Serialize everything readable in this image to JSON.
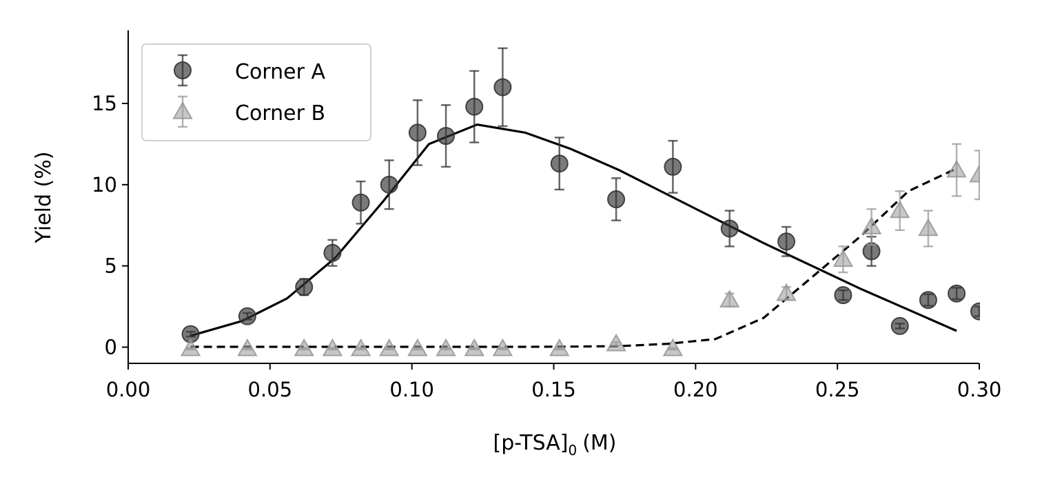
{
  "chart_data": {
    "type": "scatter",
    "title": "",
    "xlabel": "[p-TSA]",
    "xlabel_subscript": "0",
    "xlabel_unit": "(M)",
    "ylabel": "Yield (%)",
    "xlim": [
      0.0,
      0.3
    ],
    "ylim": [
      -1.0,
      19.5
    ],
    "xticks": [
      0.0,
      0.05,
      0.1,
      0.15,
      0.2,
      0.25,
      0.3
    ],
    "xtick_labels": [
      "0.00",
      "0.05",
      "0.10",
      "0.15",
      "0.20",
      "0.25",
      "0.30"
    ],
    "yticks": [
      0,
      5,
      10,
      15
    ],
    "ytick_labels": [
      "0",
      "5",
      "10",
      "15"
    ],
    "grid": false,
    "legend": {
      "position": "top-left"
    },
    "series": [
      {
        "name": "Corner A",
        "marker": "circle",
        "color": "#333333",
        "error_bars": true,
        "points": [
          {
            "x": 0.022,
            "y": 0.8,
            "err": 0.15
          },
          {
            "x": 0.042,
            "y": 1.9,
            "err": 0.2
          },
          {
            "x": 0.062,
            "y": 3.7,
            "err": 0.5
          },
          {
            "x": 0.072,
            "y": 5.8,
            "err": 0.8
          },
          {
            "x": 0.082,
            "y": 8.9,
            "err": 1.3
          },
          {
            "x": 0.092,
            "y": 10.0,
            "err": 1.5
          },
          {
            "x": 0.102,
            "y": 13.2,
            "err": 2.0
          },
          {
            "x": 0.112,
            "y": 13.0,
            "err": 1.9
          },
          {
            "x": 0.122,
            "y": 14.8,
            "err": 2.2
          },
          {
            "x": 0.132,
            "y": 16.0,
            "err": 2.4
          },
          {
            "x": 0.152,
            "y": 11.3,
            "err": 1.6
          },
          {
            "x": 0.172,
            "y": 9.1,
            "err": 1.3
          },
          {
            "x": 0.192,
            "y": 11.1,
            "err": 1.6
          },
          {
            "x": 0.212,
            "y": 7.3,
            "err": 1.1
          },
          {
            "x": 0.232,
            "y": 6.5,
            "err": 0.9
          },
          {
            "x": 0.252,
            "y": 3.2,
            "err": 0.3
          },
          {
            "x": 0.262,
            "y": 5.9,
            "err": 0.9
          },
          {
            "x": 0.272,
            "y": 1.3,
            "err": 0.15
          },
          {
            "x": 0.282,
            "y": 2.9,
            "err": 0.35
          },
          {
            "x": 0.292,
            "y": 3.3,
            "err": 0.35
          },
          {
            "x": 0.3,
            "y": 2.2,
            "err": 0.3
          }
        ]
      },
      {
        "name": "Corner B",
        "marker": "triangle",
        "color": "#999999",
        "error_bars": true,
        "points": [
          {
            "x": 0.022,
            "y": -0.1,
            "err": 0.05
          },
          {
            "x": 0.042,
            "y": -0.1,
            "err": 0.05
          },
          {
            "x": 0.062,
            "y": -0.1,
            "err": 0.05
          },
          {
            "x": 0.072,
            "y": -0.1,
            "err": 0.05
          },
          {
            "x": 0.082,
            "y": -0.1,
            "err": 0.05
          },
          {
            "x": 0.092,
            "y": -0.1,
            "err": 0.05
          },
          {
            "x": 0.102,
            "y": -0.1,
            "err": 0.05
          },
          {
            "x": 0.112,
            "y": -0.1,
            "err": 0.05
          },
          {
            "x": 0.122,
            "y": -0.1,
            "err": 0.05
          },
          {
            "x": 0.132,
            "y": -0.1,
            "err": 0.05
          },
          {
            "x": 0.152,
            "y": -0.1,
            "err": 0.05
          },
          {
            "x": 0.172,
            "y": 0.2,
            "err": 0.1
          },
          {
            "x": 0.192,
            "y": -0.1,
            "err": 0.05
          },
          {
            "x": 0.212,
            "y": 2.9,
            "err": 0.4
          },
          {
            "x": 0.232,
            "y": 3.3,
            "err": 0.4
          },
          {
            "x": 0.252,
            "y": 5.4,
            "err": 0.8
          },
          {
            "x": 0.262,
            "y": 7.4,
            "err": 1.1
          },
          {
            "x": 0.272,
            "y": 8.4,
            "err": 1.2
          },
          {
            "x": 0.282,
            "y": 7.3,
            "err": 1.1
          },
          {
            "x": 0.292,
            "y": 10.9,
            "err": 1.6
          },
          {
            "x": 0.3,
            "y": 10.6,
            "err": 1.5
          }
        ]
      }
    ],
    "fit_lines": [
      {
        "style": "solid",
        "color": "#000000",
        "points": [
          [
            0.022,
            0.7
          ],
          [
            0.04,
            1.6
          ],
          [
            0.056,
            3.0
          ],
          [
            0.073,
            5.5
          ],
          [
            0.09,
            9.0
          ],
          [
            0.106,
            12.5
          ],
          [
            0.123,
            13.7
          ],
          [
            0.14,
            13.2
          ],
          [
            0.156,
            12.2
          ],
          [
            0.173,
            10.9
          ],
          [
            0.19,
            9.4
          ],
          [
            0.207,
            7.9
          ],
          [
            0.224,
            6.4
          ],
          [
            0.241,
            5.0
          ],
          [
            0.258,
            3.6
          ],
          [
            0.275,
            2.3
          ],
          [
            0.292,
            1.0
          ]
        ]
      },
      {
        "style": "dashed",
        "color": "#000000",
        "points": [
          [
            0.022,
            0.02
          ],
          [
            0.04,
            0.02
          ],
          [
            0.056,
            0.02
          ],
          [
            0.073,
            0.02
          ],
          [
            0.09,
            0.02
          ],
          [
            0.106,
            0.02
          ],
          [
            0.123,
            0.02
          ],
          [
            0.14,
            0.02
          ],
          [
            0.156,
            0.03
          ],
          [
            0.173,
            0.06
          ],
          [
            0.19,
            0.2
          ],
          [
            0.207,
            0.5
          ],
          [
            0.224,
            1.8
          ],
          [
            0.241,
            4.3
          ],
          [
            0.258,
            6.8
          ],
          [
            0.275,
            9.6
          ],
          [
            0.292,
            11.0
          ]
        ]
      }
    ]
  }
}
